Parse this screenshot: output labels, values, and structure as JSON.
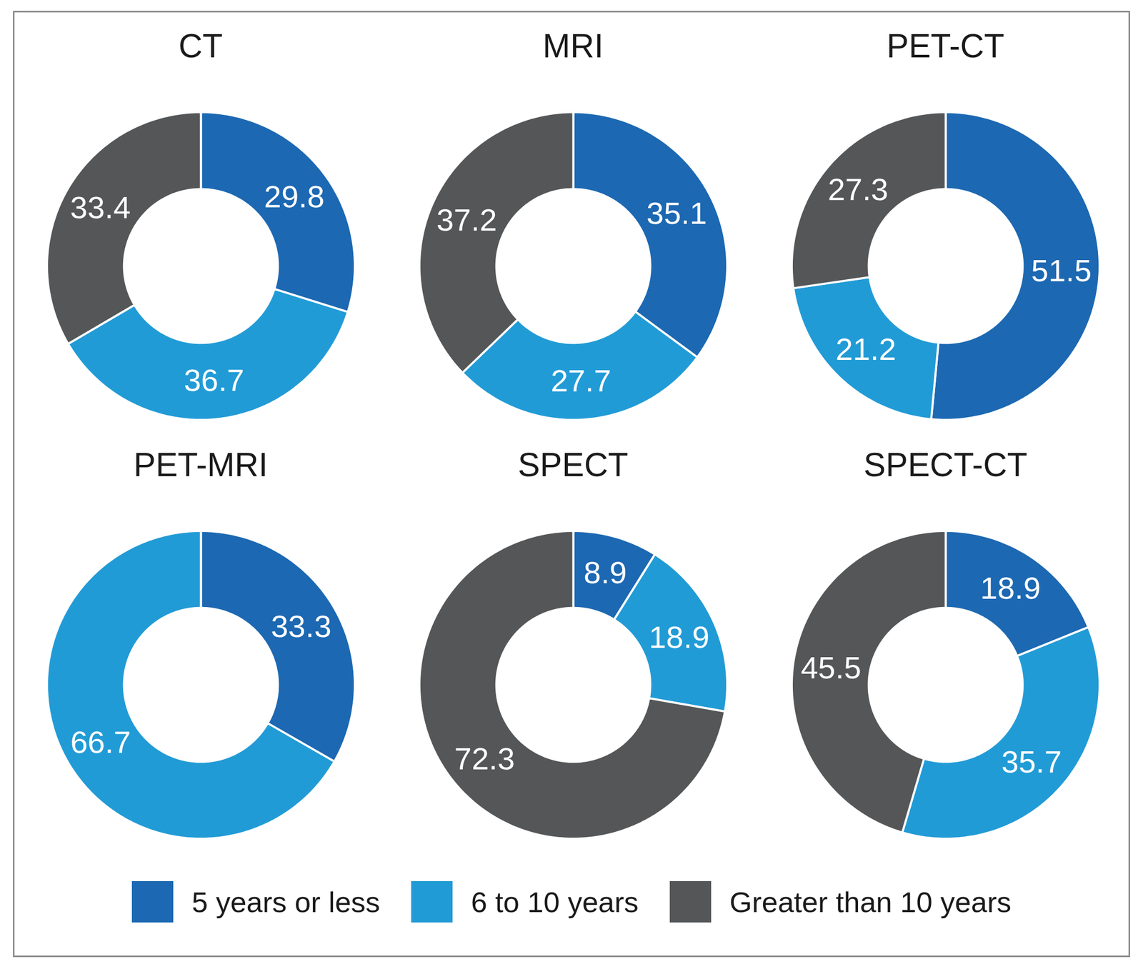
{
  "chart_data": [
    {
      "type": "donut",
      "title": "CT",
      "categories": [
        "5 years or less",
        "6 to 10 years",
        "Greater than 10 years"
      ],
      "values": [
        29.8,
        36.7,
        33.4
      ],
      "colors": [
        "#1c68b2",
        "#219bd6",
        "#545657"
      ],
      "data_labels": true,
      "legend": "bottom"
    },
    {
      "type": "donut",
      "title": "MRI",
      "categories": [
        "5 years or less",
        "6 to 10 years",
        "Greater than 10 years"
      ],
      "values": [
        35.1,
        27.7,
        37.2
      ],
      "colors": [
        "#1c68b2",
        "#219bd6",
        "#545657"
      ],
      "data_labels": true,
      "legend": "bottom"
    },
    {
      "type": "donut",
      "title": "PET-CT",
      "categories": [
        "5 years or less",
        "6 to 10 years",
        "Greater than 10 years"
      ],
      "values": [
        51.5,
        21.2,
        27.3
      ],
      "colors": [
        "#1c68b2",
        "#219bd6",
        "#545657"
      ],
      "data_labels": true,
      "legend": "bottom"
    },
    {
      "type": "donut",
      "title": "PET-MRI",
      "categories": [
        "5 years or less",
        "6 to 10 years",
        "Greater than 10 years"
      ],
      "values": [
        33.3,
        66.7,
        null
      ],
      "colors": [
        "#1c68b2",
        "#219bd6",
        "#545657"
      ],
      "data_labels": true,
      "legend": "bottom"
    },
    {
      "type": "donut",
      "title": "SPECT",
      "categories": [
        "5 years or less",
        "6 to 10 years",
        "Greater than 10 years"
      ],
      "values": [
        8.9,
        18.9,
        72.3
      ],
      "colors": [
        "#1c68b2",
        "#219bd6",
        "#545657"
      ],
      "data_labels": true,
      "legend": "bottom"
    },
    {
      "type": "donut",
      "title": "SPECT-CT",
      "categories": [
        "5 years or less",
        "6 to 10 years",
        "Greater than 10 years"
      ],
      "values": [
        18.9,
        35.7,
        45.5
      ],
      "colors": [
        "#1c68b2",
        "#219bd6",
        "#545657"
      ],
      "data_labels": true,
      "legend": "bottom"
    }
  ]
}
